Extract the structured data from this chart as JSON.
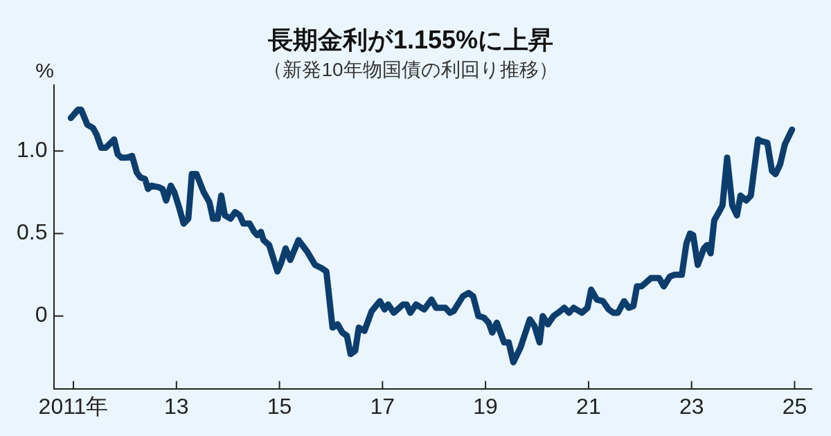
{
  "chart_data": {
    "type": "line",
    "title": "長期金利が1.155%に上昇",
    "subtitle": "（新発10年物国債の利回り推移）",
    "ylabel": "%",
    "x": [
      2010.95,
      2011.09,
      2011.15,
      2011.27,
      2011.38,
      2011.45,
      2011.54,
      2011.63,
      2011.79,
      2011.86,
      2011.93,
      2012.04,
      2012.14,
      2012.23,
      2012.3,
      2012.39,
      2012.45,
      2012.52,
      2012.66,
      2012.73,
      2012.8,
      2012.89,
      2012.96,
      2013.05,
      2013.14,
      2013.23,
      2013.3,
      2013.39,
      2013.53,
      2013.64,
      2013.71,
      2013.8,
      2013.87,
      2013.94,
      2014.05,
      2014.14,
      2014.23,
      2014.3,
      2014.42,
      2014.51,
      2014.57,
      2014.64,
      2014.69,
      2014.8,
      2014.87,
      2014.96,
      2015.03,
      2015.12,
      2015.21,
      2015.37,
      2015.54,
      2015.69,
      2015.82,
      2015.91,
      2016.03,
      2016.13,
      2016.22,
      2016.31,
      2016.38,
      2016.47,
      2016.54,
      2016.65,
      2016.79,
      2016.95,
      2017.04,
      2017.11,
      2017.22,
      2017.4,
      2017.47,
      2017.54,
      2017.65,
      2017.81,
      2017.95,
      2018.04,
      2018.22,
      2018.31,
      2018.38,
      2018.56,
      2018.67,
      2018.76,
      2018.86,
      2018.97,
      2019.06,
      2019.13,
      2019.22,
      2019.36,
      2019.45,
      2019.54,
      2019.68,
      2019.86,
      2019.95,
      2020.05,
      2020.11,
      2020.21,
      2020.32,
      2020.41,
      2020.53,
      2020.62,
      2020.71,
      2020.87,
      2020.98,
      2021.05,
      2021.16,
      2021.28,
      2021.39,
      2021.48,
      2021.57,
      2021.69,
      2021.78,
      2021.87,
      2021.94,
      2022.03,
      2022.21,
      2022.37,
      2022.46,
      2022.58,
      2022.67,
      2022.81,
      2022.9,
      2022.97,
      2023.03,
      2023.12,
      2023.24,
      2023.3,
      2023.37,
      2023.44,
      2023.53,
      2023.6,
      2023.69,
      2023.79,
      2023.88,
      2023.95,
      2024.06,
      2024.15,
      2024.29,
      2024.35,
      2024.47,
      2024.56,
      2024.63,
      2024.72,
      2024.81,
      2024.95
    ],
    "series": [
      {
        "color": "#0c3d6d",
        "values": [
          1.2,
          1.25,
          1.25,
          1.16,
          1.14,
          1.1,
          1.02,
          1.02,
          1.07,
          0.98,
          0.96,
          0.96,
          0.97,
          0.87,
          0.84,
          0.83,
          0.77,
          0.79,
          0.78,
          0.77,
          0.7,
          0.79,
          0.75,
          0.66,
          0.56,
          0.59,
          0.86,
          0.86,
          0.75,
          0.69,
          0.59,
          0.59,
          0.73,
          0.61,
          0.59,
          0.63,
          0.61,
          0.56,
          0.56,
          0.51,
          0.49,
          0.51,
          0.46,
          0.43,
          0.36,
          0.27,
          0.32,
          0.41,
          0.34,
          0.46,
          0.39,
          0.31,
          0.29,
          0.27,
          -0.07,
          -0.05,
          -0.1,
          -0.12,
          -0.23,
          -0.21,
          -0.07,
          -0.09,
          0.03,
          0.09,
          0.04,
          0.07,
          0.02,
          0.07,
          0.07,
          0.02,
          0.07,
          0.04,
          0.1,
          0.05,
          0.05,
          0.02,
          0.03,
          0.12,
          0.14,
          0.12,
          0.0,
          -0.01,
          -0.04,
          -0.1,
          -0.04,
          -0.16,
          -0.16,
          -0.28,
          -0.19,
          -0.02,
          -0.06,
          -0.16,
          0.0,
          -0.05,
          0.0,
          0.02,
          0.05,
          0.02,
          0.05,
          0.02,
          0.05,
          0.16,
          0.1,
          0.09,
          0.04,
          0.02,
          0.02,
          0.09,
          0.05,
          0.06,
          0.18,
          0.18,
          0.23,
          0.23,
          0.18,
          0.24,
          0.25,
          0.25,
          0.44,
          0.5,
          0.49,
          0.31,
          0.41,
          0.43,
          0.38,
          0.58,
          0.63,
          0.67,
          0.96,
          0.67,
          0.61,
          0.73,
          0.7,
          0.73,
          1.07,
          1.06,
          1.05,
          0.88,
          0.86,
          0.92,
          1.04,
          1.13
        ]
      }
    ],
    "xlim": [
      2010.63,
      2025.33
    ],
    "xticks": [
      {
        "value": 2011,
        "label": "2011年"
      },
      {
        "value": 2013,
        "label": "13"
      },
      {
        "value": 2015,
        "label": "15"
      },
      {
        "value": 2017,
        "label": "17"
      },
      {
        "value": 2019,
        "label": "19"
      },
      {
        "value": 2021,
        "label": "21"
      },
      {
        "value": 2023,
        "label": "23"
      },
      {
        "value": 2025,
        "label": "25"
      }
    ],
    "ylim": [
      -0.44,
      1.4
    ],
    "yticks": [
      0,
      0.5,
      {
        "value": 1,
        "label": "1.0"
      }
    ]
  }
}
